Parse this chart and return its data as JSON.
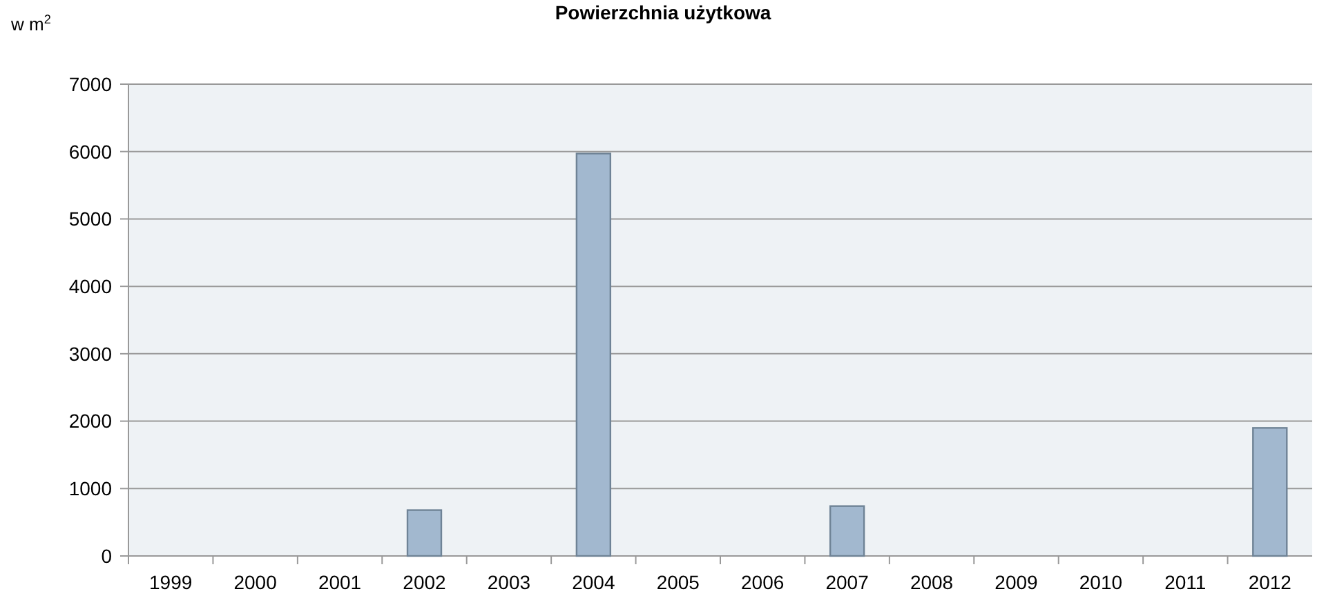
{
  "chart_data": {
    "type": "bar",
    "title": "Powierzchnia użytkowa",
    "ylabel": "w m$^{2}$",
    "categories": [
      "1999",
      "2000",
      "2001",
      "2002",
      "2003",
      "2004",
      "2005",
      "2006",
      "2007",
      "2008",
      "2009",
      "2010",
      "2011",
      "2012"
    ],
    "values": [
      null,
      null,
      null,
      680,
      null,
      5970,
      null,
      null,
      740,
      null,
      null,
      null,
      null,
      1900
    ],
    "color": "#a2b8cf",
    "ylim": [
      0,
      7000
    ],
    "yticks": [
      0,
      1000,
      2000,
      3000,
      4000,
      5000,
      6000,
      7000
    ],
    "grid": "y"
  }
}
